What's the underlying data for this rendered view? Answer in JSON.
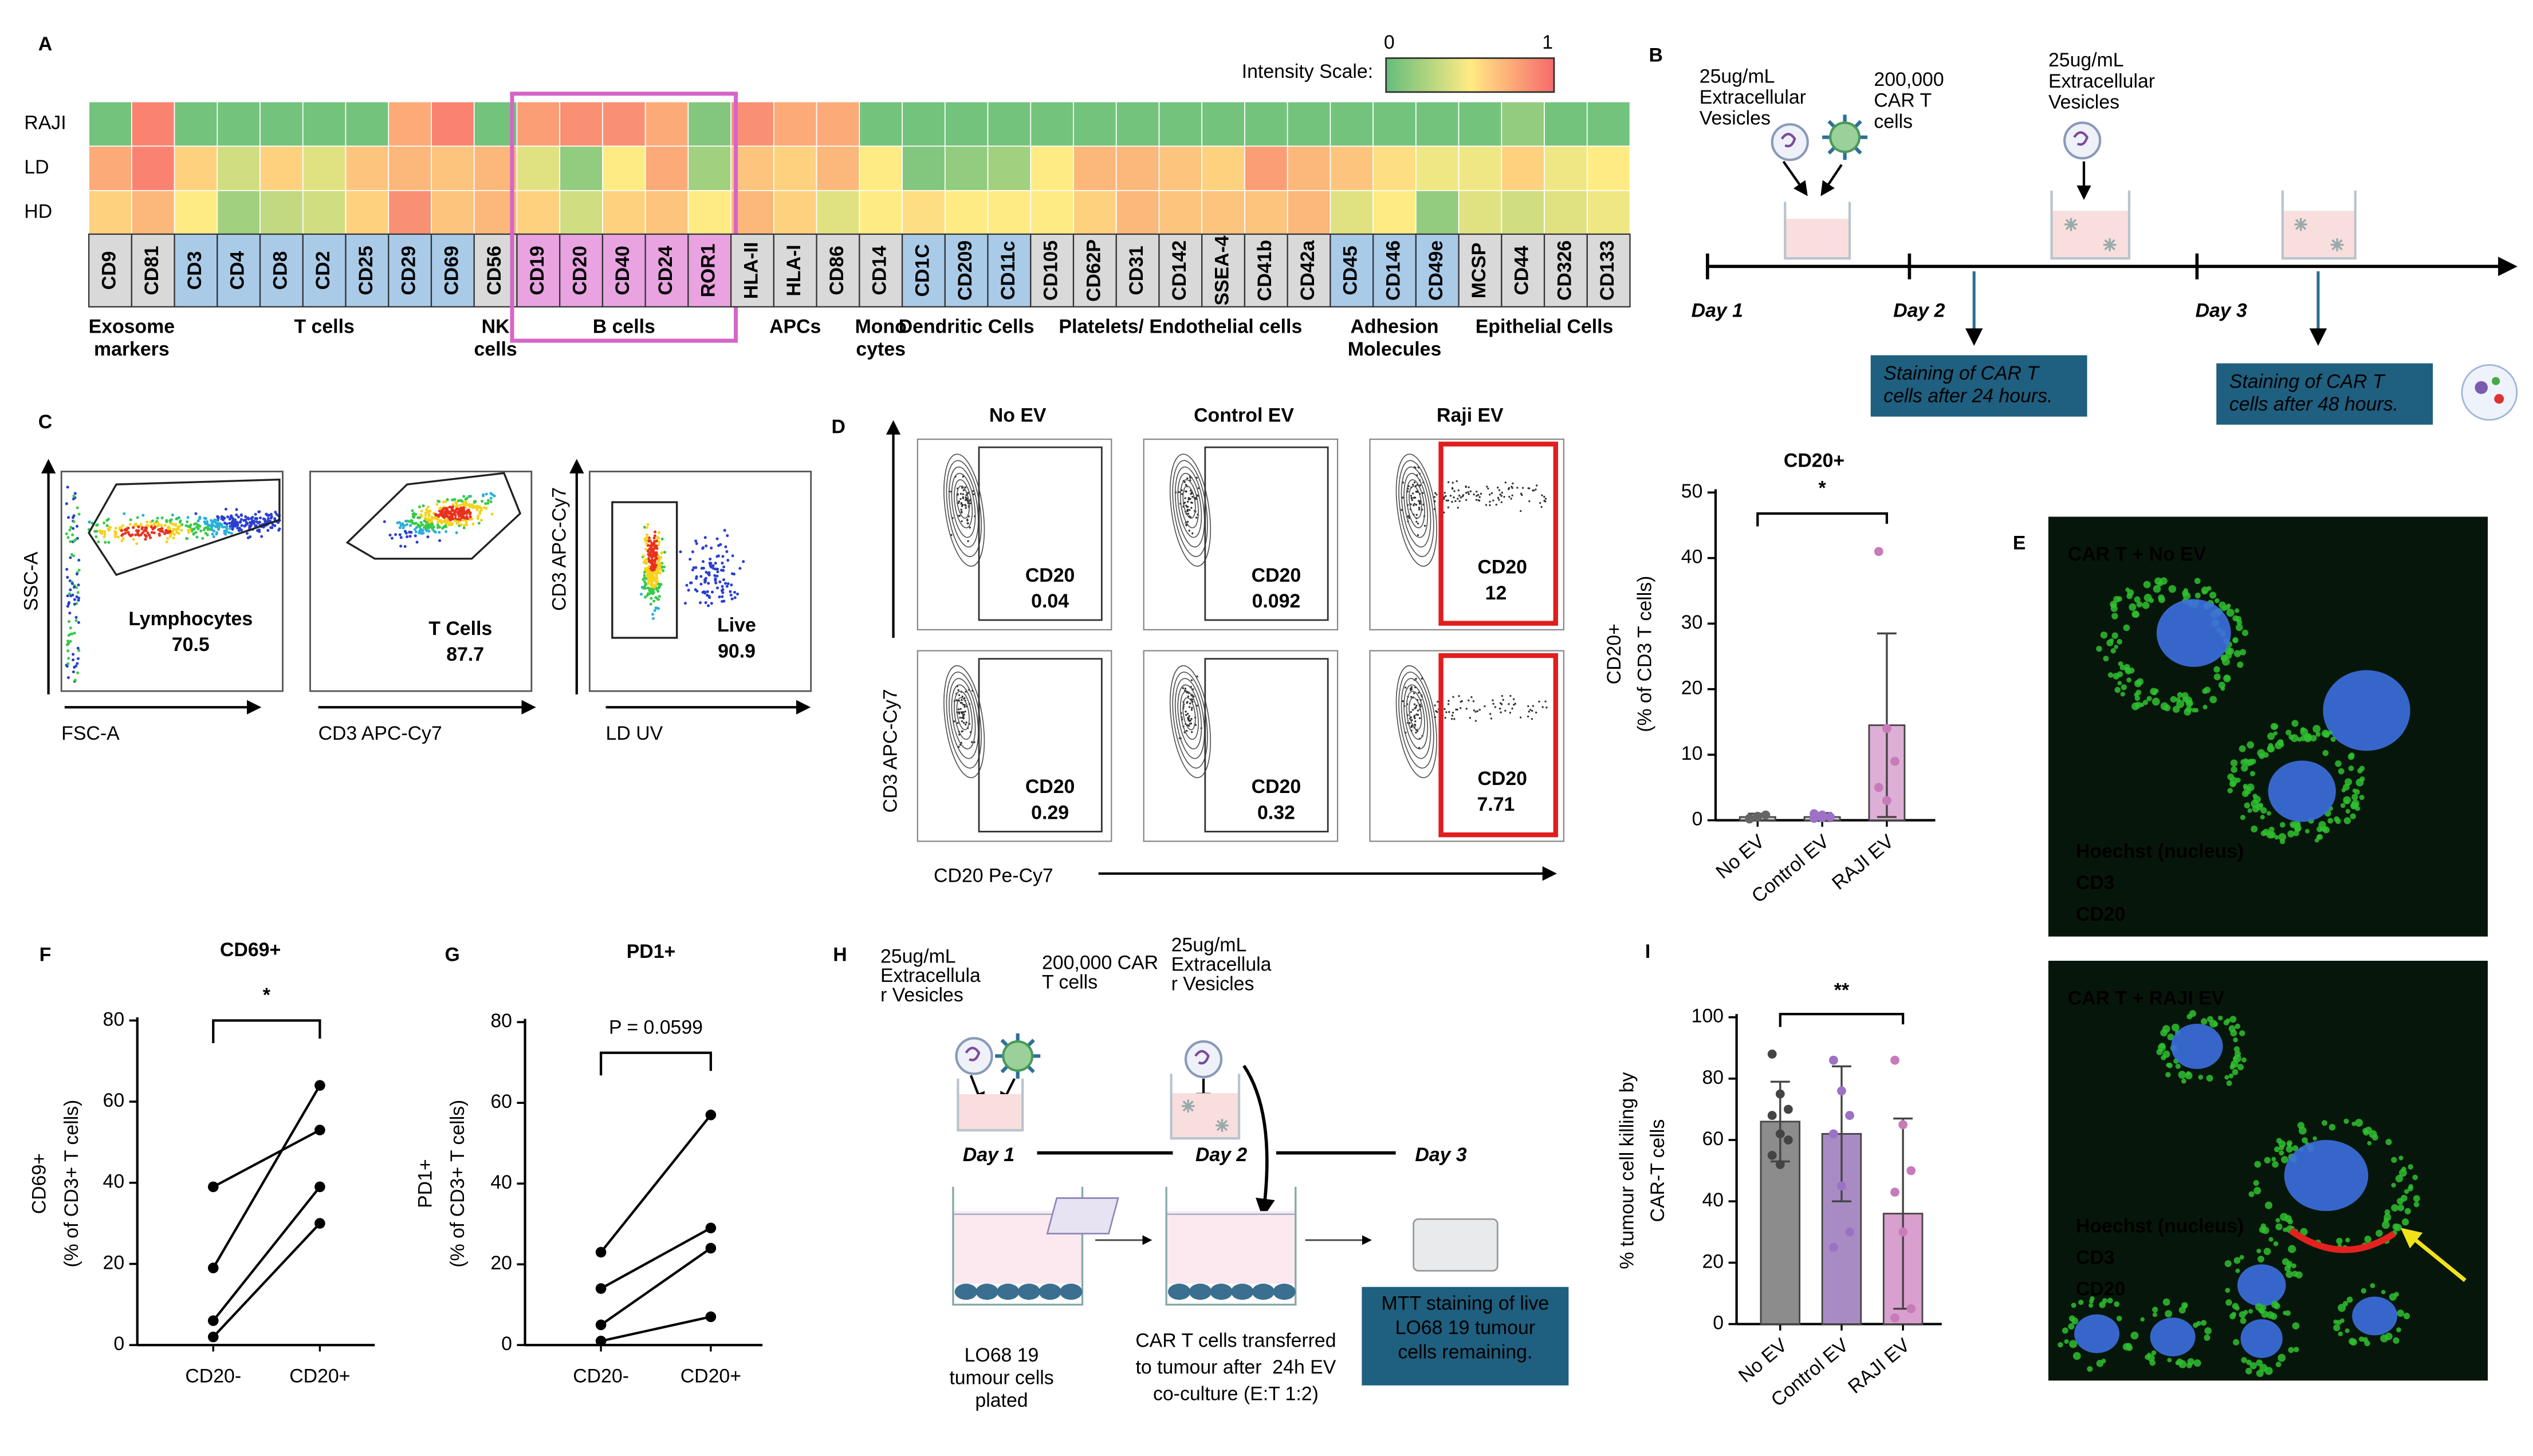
{
  "panel_labels": [
    "A",
    "B",
    "C",
    "D",
    "E",
    "F",
    "G",
    "H",
    "I"
  ],
  "heatmap": {
    "rows": [
      "RAJI",
      "LD",
      "HD"
    ],
    "scale_label": "Intensity Scale:",
    "scale_ticks": [
      0,
      1
    ],
    "colors": [
      "#63be7b",
      "#ffeb84",
      "#f8696b"
    ],
    "groups": [
      {
        "label": [
          "Exosome",
          "markers"
        ],
        "color": "#d9d9d9",
        "markers": [
          "CD9",
          "CD81"
        ]
      },
      {
        "label": [
          "T cells"
        ],
        "color": "#a9cbe8",
        "markers": [
          "CD3",
          "CD4",
          "CD8",
          "CD2",
          "CD25",
          "CD29",
          "CD69"
        ]
      },
      {
        "label": [
          "NK",
          "cells"
        ],
        "color": "#d9d9d9",
        "markers": [
          "CD56"
        ]
      },
      {
        "label": [
          "B cells"
        ],
        "color": "#e8a3e0",
        "markers": [
          "CD19",
          "CD20",
          "CD40",
          "CD24",
          "ROR1"
        ],
        "highlight": true
      },
      {
        "label": [
          "APCs"
        ],
        "color": "#d9d9d9",
        "markers": [
          "HLA-II",
          "HLA-I",
          "CD86"
        ]
      },
      {
        "label": [
          "Mono",
          "cytes"
        ],
        "color": "#d9d9d9",
        "markers": [
          "CD14"
        ]
      },
      {
        "label": [
          "Dendritic Cells"
        ],
        "color": "#a9cbe8",
        "markers": [
          "CD1C",
          "CD209",
          "CD11c"
        ]
      },
      {
        "label": [
          "Platelets/ Endothelial cells"
        ],
        "color": "#d9d9d9",
        "markers": [
          "CD105",
          "CD62P",
          "CD31",
          "CD142",
          "SSEA-4",
          "CD41b",
          "CD42a"
        ]
      },
      {
        "label": [
          "Adhesion",
          "Molecules"
        ],
        "color": "#a9cbe8",
        "markers": [
          "CD45",
          "CD146",
          "CD49e"
        ]
      },
      {
        "label": [
          "Epithelial Cells"
        ],
        "color": "#d9d9d9",
        "markers": [
          "MCSP",
          "CD44",
          "CD326",
          "CD133"
        ]
      }
    ],
    "values": [
      [
        0.05,
        0.9,
        0.05,
        0.05,
        0.05,
        0.05,
        0.05,
        0.75,
        0.9,
        0.05,
        0.8,
        0.85,
        0.85,
        0.75,
        0.1,
        0.85,
        0.75,
        0.75,
        0.05,
        0.05,
        0.05,
        0.05,
        0.05,
        0.05,
        0.05,
        0.05,
        0.05,
        0.05,
        0.05,
        0.05,
        0.05,
        0.05,
        0.05,
        0.15,
        0.05,
        0.05
      ],
      [
        0.75,
        0.9,
        0.6,
        0.35,
        0.6,
        0.4,
        0.65,
        0.7,
        0.65,
        0.7,
        0.4,
        0.15,
        0.5,
        0.75,
        0.2,
        0.65,
        0.6,
        0.7,
        0.5,
        0.1,
        0.15,
        0.2,
        0.5,
        0.7,
        0.7,
        0.65,
        0.6,
        0.8,
        0.7,
        0.65,
        0.55,
        0.45,
        0.45,
        0.6,
        0.45,
        0.5
      ],
      [
        0.6,
        0.7,
        0.5,
        0.2,
        0.3,
        0.35,
        0.6,
        0.85,
        0.65,
        0.7,
        0.6,
        0.35,
        0.6,
        0.65,
        0.5,
        0.7,
        0.6,
        0.4,
        0.5,
        0.55,
        0.5,
        0.5,
        0.5,
        0.6,
        0.7,
        0.65,
        0.65,
        0.65,
        0.7,
        0.4,
        0.5,
        0.15,
        0.4,
        0.35,
        0.4,
        0.45
      ]
    ]
  },
  "timeline_b": {
    "ev_label": [
      "25ug/mL",
      "Extracellular",
      "Vesicles"
    ],
    "cart_label": [
      "200,000",
      "CAR T",
      "cells"
    ],
    "ev_label_2": [
      "25ug/mL",
      "Extracellular",
      "Vesicles"
    ],
    "days": [
      "Day 1",
      "Day 2",
      "Day 3"
    ],
    "notes": [
      [
        "Staining of CAR T",
        "cells after 24 hours."
      ],
      [
        "Staining of CAR T",
        "cells after 48 hours."
      ]
    ]
  },
  "gating_c": {
    "plots": [
      {
        "x_label": "FSC-A",
        "y_label": "SSC-A",
        "gate": "Lymphocytes",
        "value": 70.5
      },
      {
        "x_label": "CD3 APC-Cy7",
        "gate": "T Cells",
        "value": 87.7
      },
      {
        "x_label": "LD UV",
        "y_label": "CD3 APC-Cy7",
        "gate": "Live",
        "value": 90.9
      }
    ]
  },
  "flow_d": {
    "columns": [
      "No EV",
      "Control EV",
      "Raji EV"
    ],
    "y_label": "CD3 APC-Cy7",
    "x_label": "CD20 Pe-Cy7",
    "gate_label": "CD20",
    "values": [
      [
        0.04,
        0.092,
        12
      ],
      [
        0.29,
        0.32,
        7.71
      ]
    ]
  },
  "microscopy_e": {
    "titles": [
      "CAR T + No EV",
      "CAR T + RAJI EV"
    ],
    "legend": [
      {
        "name": "Hoechst (nucleus)",
        "color": "#3d6fe0"
      },
      {
        "name": "CD3",
        "color": "#2fbf2f"
      },
      {
        "name": "CD20",
        "color": "#e3221f"
      }
    ]
  },
  "diagram_h": {
    "ev_label": [
      "25ug/mL",
      "Extracellula",
      "r Vesicles"
    ],
    "cart_label": [
      "200,000 CAR",
      "T cells"
    ],
    "ev_label_2": [
      "25ug/mL",
      "Extracellula",
      "r Vesicles"
    ],
    "days": [
      "Day 1",
      "Day 2",
      "Day 3"
    ],
    "step_1": [
      "LO68 19",
      "tumour cells",
      "plated"
    ],
    "step_2": [
      "CAR T cells transferred",
      "to tumour after  24h EV",
      "co-culture (E:T 1:2)"
    ],
    "step_3": [
      "MTT staining of live",
      "LO68 19 tumour",
      "cells remaining."
    ]
  },
  "chart_data": [
    {
      "type": "bar",
      "title": "CD20+",
      "y_label": [
        "CD20+",
        "(% of CD3 T cells)"
      ],
      "annotation": "*",
      "categories": [
        "No EV",
        "Control EV",
        "RAJI EV"
      ],
      "values": [
        0.5,
        0.5,
        14.5
      ],
      "errors": [
        0.5,
        0.6,
        14
      ],
      "points": [
        [
          0.2,
          0.5,
          0.8,
          0.3,
          0.6
        ],
        [
          0.3,
          0.8,
          0.5,
          1,
          0.4
        ],
        [
          41,
          14,
          9,
          5,
          3
        ]
      ],
      "colors": [
        "#d4d4d4",
        "#dccdea",
        "#ddaed6"
      ],
      "point_colors": [
        "#666666",
        "#9b72c5",
        "#c77bb8"
      ],
      "ylim": [
        0,
        50
      ],
      "yticks": [
        0,
        10,
        20,
        30,
        40,
        50
      ]
    },
    {
      "type": "line",
      "title": "CD69+",
      "y_label": [
        "CD69+",
        "(% of CD3+ T cells)"
      ],
      "annotation": "*",
      "categories": [
        "CD20-",
        "CD20+"
      ],
      "series": [
        {
          "color": "#000000",
          "values": [
            39,
            53
          ]
        },
        {
          "color": "#000000",
          "values": [
            19,
            64
          ]
        },
        {
          "color": "#000000",
          "values": [
            6,
            39
          ]
        },
        {
          "color": "#000000",
          "values": [
            2,
            30
          ]
        }
      ],
      "ylim": [
        0,
        80
      ],
      "yticks": [
        0,
        20,
        40,
        60,
        80
      ]
    },
    {
      "type": "line",
      "title": "PD1+",
      "y_label": [
        "PD1+",
        "(% of CD3+ T cells)"
      ],
      "annotation": "P = 0.0599",
      "categories": [
        "CD20-",
        "CD20+"
      ],
      "series": [
        {
          "color": "#000000",
          "values": [
            23,
            57
          ]
        },
        {
          "color": "#000000",
          "values": [
            14,
            29
          ]
        },
        {
          "color": "#000000",
          "values": [
            5,
            24
          ]
        },
        {
          "color": "#000000",
          "values": [
            1,
            7
          ]
        }
      ],
      "ylim": [
        0,
        80
      ],
      "yticks": [
        0,
        20,
        40,
        60,
        80
      ]
    },
    {
      "type": "bar",
      "y_label": [
        "% tumour cell killing by",
        "CAR-T cells"
      ],
      "annotation": "**",
      "categories": [
        "No EV",
        "Control EV",
        "RAJI EV"
      ],
      "values": [
        66,
        62,
        36
      ],
      "errors": [
        13,
        22,
        31
      ],
      "points": [
        [
          88,
          75,
          70,
          68,
          62,
          60,
          55,
          52
        ],
        [
          86,
          76,
          68,
          62,
          45,
          30,
          25
        ],
        [
          86,
          65,
          50,
          43,
          30,
          5,
          2
        ]
      ],
      "colors": [
        "#8c8c8c",
        "#a98bc4",
        "#d9a0cf"
      ],
      "point_colors": [
        "#444444",
        "#9b72c5",
        "#c77bb8"
      ],
      "ylim": [
        0,
        100
      ],
      "yticks": [
        0,
        20,
        40,
        60,
        80,
        100
      ]
    }
  ]
}
